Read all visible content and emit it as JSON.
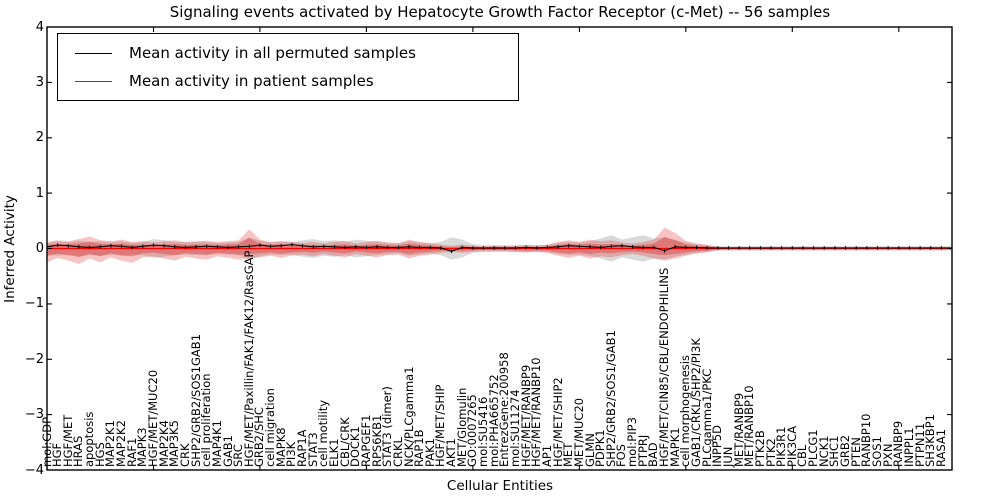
{
  "chart_data": {
    "type": "line",
    "title": "Signaling events activated by Hepatocyte Growth Factor Receptor (c-Met) -- 56 samples",
    "xlabel": "Cellular Entities",
    "ylabel": "Inferred Activity",
    "ylim": [
      -4,
      4
    ],
    "grid": false,
    "legend_position": "upper left",
    "yticks": [
      {
        "v": 4,
        "label": "4"
      },
      {
        "v": 3,
        "label": "3"
      },
      {
        "v": 2,
        "label": "2"
      },
      {
        "v": 1,
        "label": "1"
      },
      {
        "v": 0,
        "label": "0"
      },
      {
        "v": -1,
        "label": "−1"
      },
      {
        "v": -2,
        "label": "−2"
      },
      {
        "v": -3,
        "label": "−3"
      },
      {
        "v": -4,
        "label": "−4"
      }
    ],
    "categories": [
      "mol:GDP",
      "HGF",
      "HGF/MET",
      "HRAS",
      "apoptosis",
      "HGS",
      "MAP2K1",
      "MAP2K2",
      "RAF1",
      "MAPK3",
      "HGF/MET/MUC20",
      "MAP2K4",
      "MAP3K5",
      "CRK",
      "SHP2/GRB2/SOS1GAB1",
      "cell proliferation",
      "MAP4K1",
      "GAB1",
      "SRC",
      "HGF/MET/Paxillin/FAK1/FAK12/RasGAP",
      "GRB2/SHC",
      "cell migration",
      "MAPK8",
      "PI3K",
      "RAP1A",
      "STAT3",
      "cell motility",
      "ELK1",
      "CBL/CRK",
      "DOCK1",
      "RAPGEF1",
      "RPS6KB1",
      "STAT3 (dimer)",
      "CRKL",
      "NCK/PLCgamma1",
      "RAP1B",
      "PAK1",
      "HGF/MET/SHIP",
      "AKT1",
      "MET/Glomulin",
      "GO:0007265",
      "mol:SU5416",
      "mol:PHA665752",
      "EntrezGene:200958",
      "mol:SU11274",
      "HGF/MET/RANBP9",
      "HGF/MET/RANBP10",
      "AP1",
      "HGF/MET/SHIP2",
      "MET",
      "MET/MUC20",
      "GLMN",
      "PDPK1",
      "SHP2/GRB2/SOS1/GAB1",
      "FOS",
      "mol:PIP3",
      "PTPRJ",
      "BAD",
      "HGF/MET/CIN85/CBL/ENDOPHILINS",
      "MAPK1",
      "cell morphogenesis",
      "GAB1/CRKL/SHP2/PI3K",
      "PLCgamma1/PKC",
      "INPP5D",
      "JUN",
      "MET/RANBP9",
      "MET/RANBP10",
      "PTK2B",
      "PTK2",
      "PIK3R1",
      "PIK3CA",
      "CBL",
      "PLCG1",
      "NCK1",
      "SHC1",
      "GRB2",
      "PTEN",
      "RANBP10",
      "SOS1",
      "PXN",
      "RANBP9",
      "INPPL1",
      "PTPN11",
      "SH3KBP1",
      "RASA1"
    ],
    "series": [
      {
        "name": "Mean activity in all permuted samples",
        "color": "#000000",
        "style": "line-with-tick-markers",
        "values": [
          0.03,
          0.06,
          0.05,
          0.03,
          0.02,
          0.03,
          0.05,
          0.04,
          0.02,
          0.04,
          0.06,
          0.05,
          0.03,
          0.02,
          0.03,
          0.04,
          0.03,
          0.02,
          0.03,
          0.04,
          0.06,
          0.04,
          0.05,
          0.07,
          0.05,
          0.03,
          0.04,
          0.03,
          0.02,
          0.03,
          0.02,
          0.03,
          0.02,
          0.02,
          0.03,
          0.02,
          0.02,
          0.01,
          -0.05,
          0.02,
          0.01,
          0.01,
          0.01,
          0.01,
          0.01,
          0.02,
          0.01,
          0.02,
          0.03,
          0.05,
          0.04,
          0.03,
          0.02,
          0.04,
          0.05,
          0.03,
          0.02,
          0.02,
          -0.04,
          0.03,
          0.02,
          0.02,
          0.01,
          0.01,
          0.01,
          0.01,
          0.01,
          0.01,
          0.01,
          0.01,
          0.01,
          0.01,
          0.01,
          0.01,
          0.01,
          0.01,
          0.01,
          0.01,
          0.01,
          0.01,
          0.01,
          0.01,
          0.01,
          0.01,
          0.01
        ]
      },
      {
        "name": "Mean activity in patient samples",
        "color": "#ff0000",
        "style": "line",
        "values": [
          0,
          0,
          0,
          0,
          0,
          0,
          0,
          0,
          0,
          0,
          0,
          0,
          0,
          0,
          0,
          0,
          0,
          0,
          0,
          0,
          0,
          0,
          0,
          0,
          0,
          0,
          0,
          0,
          0,
          0,
          0,
          0,
          0,
          0,
          0,
          0,
          0,
          0,
          0,
          0,
          0,
          0,
          0,
          0,
          0,
          0,
          0,
          0,
          0,
          0,
          0,
          0,
          0,
          0,
          0,
          0,
          0,
          0,
          0,
          0,
          0,
          0,
          0,
          0,
          0,
          0,
          0,
          0,
          0,
          0,
          0,
          0,
          0,
          0,
          0,
          0,
          0,
          0,
          0,
          0,
          0,
          0,
          0,
          0,
          0
        ]
      }
    ],
    "bands": [
      {
        "name": "permuted-samples-std-band",
        "color": "rgba(130,130,130,0.30)",
        "symmetric": true,
        "upper": [
          0.1,
          0.13,
          0.11,
          0.14,
          0.12,
          0.13,
          0.11,
          0.13,
          0.1,
          0.12,
          0.17,
          0.15,
          0.12,
          0.11,
          0.12,
          0.12,
          0.1,
          0.11,
          0.12,
          0.2,
          0.14,
          0.11,
          0.12,
          0.11,
          0.15,
          0.17,
          0.13,
          0.15,
          0.12,
          0.16,
          0.14,
          0.12,
          0.1,
          0.09,
          0.13,
          0.11,
          0.09,
          0.12,
          0.2,
          0.16,
          0.08,
          0.06,
          0.06,
          0.06,
          0.06,
          0.07,
          0.06,
          0.07,
          0.1,
          0.12,
          0.11,
          0.13,
          0.18,
          0.24,
          0.16,
          0.2,
          0.24,
          0.18,
          0.2,
          0.15,
          0.11,
          0.08,
          0.06,
          0.04,
          0.04,
          0.04,
          0.04,
          0.04,
          0.04,
          0.04,
          0.04,
          0.04,
          0.04,
          0.04,
          0.04,
          0.04,
          0.04,
          0.04,
          0.04,
          0.04,
          0.04,
          0.04,
          0.04,
          0.04,
          0.04
        ]
      },
      {
        "name": "patient-samples-std-band",
        "color": "rgba(228,60,60,0.30)",
        "inner_color": "rgba(225,45,45,0.40)",
        "inner_ratio": 0.55,
        "upper": [
          0.12,
          0.15,
          0.13,
          0.17,
          0.22,
          0.15,
          0.13,
          0.16,
          0.12,
          0.13,
          0.11,
          0.13,
          0.15,
          0.12,
          0.13,
          0.14,
          0.12,
          0.13,
          0.15,
          0.35,
          0.16,
          0.12,
          0.14,
          0.12,
          0.1,
          0.12,
          0.09,
          0.12,
          0.14,
          0.09,
          0.12,
          0.14,
          0.11,
          0.1,
          0.16,
          0.12,
          0.1,
          0.07,
          0.05,
          0.07,
          0.05,
          0.04,
          0.05,
          0.04,
          0.05,
          0.06,
          0.05,
          0.07,
          0.12,
          0.15,
          0.12,
          0.16,
          0.13,
          0.15,
          0.11,
          0.09,
          0.12,
          0.16,
          0.38,
          0.28,
          0.14,
          0.09,
          0.07,
          0.03,
          0.02,
          0.02,
          0.02,
          0.02,
          0.02,
          0.02,
          0.02,
          0.02,
          0.02,
          0.02,
          0.02,
          0.02,
          0.02,
          0.02,
          0.02,
          0.02,
          0.02,
          0.02,
          0.02,
          0.02,
          0.02
        ],
        "lower": [
          -0.25,
          -0.17,
          -0.22,
          -0.28,
          -0.18,
          -0.25,
          -0.16,
          -0.22,
          -0.26,
          -0.16,
          -0.14,
          -0.18,
          -0.22,
          -0.15,
          -0.18,
          -0.2,
          -0.14,
          -0.17,
          -0.2,
          -0.18,
          -0.16,
          -0.13,
          -0.17,
          -0.13,
          -0.11,
          -0.14,
          -0.1,
          -0.13,
          -0.16,
          -0.1,
          -0.13,
          -0.16,
          -0.12,
          -0.11,
          -0.18,
          -0.13,
          -0.11,
          -0.08,
          -0.06,
          -0.08,
          -0.06,
          -0.05,
          -0.05,
          -0.05,
          -0.06,
          -0.07,
          -0.06,
          -0.08,
          -0.13,
          -0.17,
          -0.13,
          -0.18,
          -0.14,
          -0.16,
          -0.12,
          -0.1,
          -0.13,
          -0.18,
          -0.22,
          -0.18,
          -0.13,
          -0.09,
          -0.07,
          -0.03,
          -0.02,
          -0.02,
          -0.02,
          -0.02,
          -0.02,
          -0.02,
          -0.02,
          -0.02,
          -0.02,
          -0.02,
          -0.02,
          -0.02,
          -0.02,
          -0.02,
          -0.02,
          -0.02,
          -0.02,
          -0.02,
          -0.02,
          -0.02,
          -0.02
        ]
      }
    ]
  },
  "legend": {
    "items": [
      {
        "label": "Mean activity in all permuted samples",
        "color": "#000000"
      },
      {
        "label": "Mean activity in patient samples",
        "color": "#ff0000"
      }
    ]
  }
}
